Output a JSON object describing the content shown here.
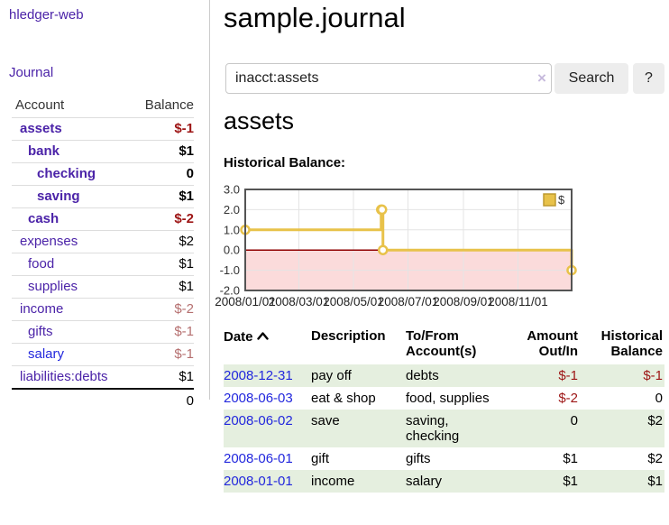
{
  "sidebar": {
    "brand": "hledger-web",
    "nav": {
      "journal": "Journal"
    },
    "headers": {
      "account": "Account",
      "balance": "Balance"
    },
    "accounts": [
      {
        "name": "assets",
        "balance": "$-1"
      },
      {
        "name": "bank",
        "balance": "$1"
      },
      {
        "name": "checking",
        "balance": "0"
      },
      {
        "name": "saving",
        "balance": "$1"
      },
      {
        "name": "cash",
        "balance": "$-2"
      },
      {
        "name": "expenses",
        "balance": "$2"
      },
      {
        "name": "food",
        "balance": "$1"
      },
      {
        "name": "supplies",
        "balance": "$1"
      },
      {
        "name": "income",
        "balance": "$-2"
      },
      {
        "name": "gifts",
        "balance": "$-1"
      },
      {
        "name": "salary",
        "balance": "$-1"
      },
      {
        "name": "liabilities:debts",
        "balance": "$1"
      }
    ],
    "total": "0"
  },
  "header": {
    "title": "sample.journal"
  },
  "search": {
    "query": "inacct:assets",
    "clear_icon": "×",
    "button": "Search",
    "help_button": "?"
  },
  "account_page": {
    "heading": "assets",
    "chart_label": "Historical Balance:"
  },
  "chart_data": {
    "type": "line",
    "title": "Historical Balance",
    "step": true,
    "series": [
      {
        "name": "$",
        "points": [
          [
            "2008/01/01",
            1
          ],
          [
            "2008/06/01",
            2
          ],
          [
            "2008/06/02",
            2
          ],
          [
            "2008/06/03",
            0
          ],
          [
            "2008/12/31",
            -1
          ]
        ]
      }
    ],
    "xrange": [
      "2008/01/01",
      "2008/12/31"
    ],
    "ylim": [
      -2,
      3
    ],
    "yticks": [
      3.0,
      2.0,
      1.0,
      0.0,
      -1.0,
      -2.0
    ],
    "xticks": [
      "2008/01/01",
      "2008/03/01",
      "2008/05/01",
      "2008/07/01",
      "2008/09/01",
      "2008/11/01"
    ],
    "legend": {
      "label": "$",
      "position": "top-right"
    },
    "grid": true,
    "line_color": "#e8c24a",
    "legend_border_color": "#bd9a30",
    "negative_region_fill": "#fbdbdb",
    "zero_line_color": "#8f0000"
  },
  "register": {
    "headers": {
      "date": "Date",
      "description": "Description",
      "accounts": "To/From\nAccount(s)",
      "amount": "Amount\nOut/In",
      "balance": "Historical\nBalance"
    },
    "rows": [
      {
        "date": "2008-12-31",
        "description": "pay off",
        "accounts": "debts",
        "amount": "$-1",
        "balance": "$-1"
      },
      {
        "date": "2008-06-03",
        "description": "eat & shop",
        "accounts": "food, supplies",
        "amount": "$-2",
        "balance": "0"
      },
      {
        "date": "2008-06-02",
        "description": "save",
        "accounts": "saving,\nchecking",
        "amount": "0",
        "balance": "$2"
      },
      {
        "date": "2008-06-01",
        "description": "gift",
        "accounts": "gifts",
        "amount": "$1",
        "balance": "$2"
      },
      {
        "date": "2008-01-01",
        "description": "income",
        "accounts": "salary",
        "amount": "$1",
        "balance": "$1"
      }
    ]
  },
  "colors": {
    "purple_link": "#4b23a8",
    "blue_link": "#2227dd",
    "negative": "#9d1515",
    "muted_negative": "#b56f6f",
    "row_green": "#e5efdf",
    "button_bg": "#ededed"
  }
}
